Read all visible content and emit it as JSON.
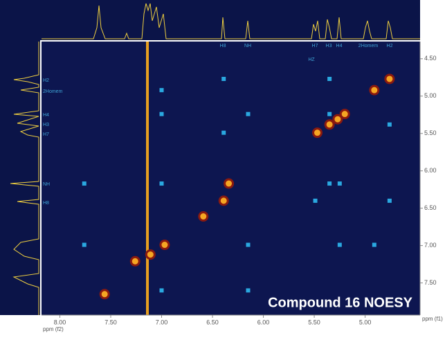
{
  "chart_data": {
    "type": "scatter",
    "title": "Compound 16 NOESY",
    "x_label": "ppm (f2)",
    "y_label": "ppm (f1)",
    "xlim": [
      8.18,
      4.46
    ],
    "ylim": [
      4.27,
      7.93
    ],
    "xticks": [
      {
        "value": 8,
        "label": "8.00"
      },
      {
        "value": 7.5,
        "label": "7.50"
      },
      {
        "value": 7,
        "label": "7.00"
      },
      {
        "value": 6.5,
        "label": "6.50"
      },
      {
        "value": 6,
        "label": "6.00"
      },
      {
        "value": 5.5,
        "label": "5.50"
      },
      {
        "value": 5,
        "label": "5.00"
      }
    ],
    "yticks": [
      {
        "value": 4.5,
        "label": "4.50"
      },
      {
        "value": 5,
        "label": "5.00"
      },
      {
        "value": 5.5,
        "label": "5.50"
      },
      {
        "value": 6,
        "label": "6.00"
      },
      {
        "value": 6.5,
        "label": "6.50"
      },
      {
        "value": 7,
        "label": "7.00"
      },
      {
        "value": 7.5,
        "label": "7.50"
      }
    ],
    "top_labels": [
      "H8",
      "NH",
      "H7",
      "H3",
      "H4",
      "2Homem",
      "H2",
      "HZ"
    ],
    "left_labels": [
      "H2",
      "2Homem",
      "H4",
      "H3",
      "H7",
      "NH",
      "H8"
    ],
    "series": [
      {
        "color": "#f5a623",
        "x": [
          4.76,
          4.91,
          5.2,
          5.27,
          5.35,
          5.47,
          6.34,
          6.39,
          6.59,
          6.97,
          7.11,
          7.26,
          7.56
        ],
        "values": [
          4.77,
          4.92,
          5.24,
          5.31,
          5.38,
          5.49,
          6.17,
          6.4,
          6.61,
          6.99,
          7.12,
          7.21,
          7.65
        ]
      },
      {
        "color": "#2aa8e0",
        "x": [
          6.39,
          5.35,
          7.0,
          7.0,
          6.15,
          5.35,
          4.76,
          6.39,
          7.76,
          7.0,
          5.35,
          5.25,
          5.49,
          4.76,
          7.76,
          6.15,
          5.25,
          4.91,
          6.15,
          7.0
        ],
        "values": [
          4.77,
          4.77,
          4.92,
          5.24,
          5.24,
          5.24,
          5.38,
          5.49,
          6.17,
          6.17,
          6.17,
          6.17,
          6.4,
          6.4,
          6.99,
          6.99,
          6.99,
          6.99,
          7.6,
          7.6
        ]
      }
    ]
  }
}
